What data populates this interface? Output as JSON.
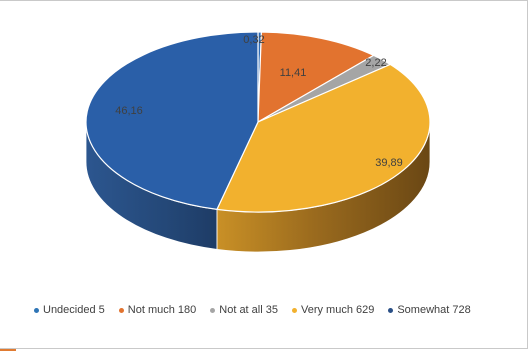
{
  "colors": {
    "accent_bar": "#E07B32",
    "blue": "#2E6BB5",
    "orange": "#E2732F",
    "gray": "#A5A5A5",
    "gold": "#F2B12E",
    "navy": "#2A4F86"
  },
  "chart_data": {
    "type": "pie",
    "style": "3d",
    "legend_position": "bottom",
    "slices": [
      {
        "label": "Undecided",
        "count": 5,
        "percent": 0.32,
        "percent_label": "0,32",
        "color": "#2E6BB5"
      },
      {
        "label": "Not much",
        "count": 180,
        "percent": 11.41,
        "percent_label": "11,41",
        "color": "#E2732F"
      },
      {
        "label": "Not at all",
        "count": 35,
        "percent": 2.22,
        "percent_label": "2,22",
        "color": "#A5A5A5"
      },
      {
        "label": "Very much",
        "count": 629,
        "percent": 39.89,
        "percent_label": "39,89",
        "color": "#F2B12E"
      },
      {
        "label": "Somewhat",
        "count": 728,
        "percent": 46.16,
        "percent_label": "46,16",
        "color": "#2A5FA8"
      }
    ],
    "legend": [
      {
        "text": "Undecided 5",
        "color": "#2E75B6"
      },
      {
        "text": "Not much 180",
        "color": "#E2732F"
      },
      {
        "text": "Not at all 35",
        "color": "#A5A5A5"
      },
      {
        "text": "Very much 629",
        "color": "#F2B12E"
      },
      {
        "text": "Somewhat 728",
        "color": "#2A4F86"
      }
    ]
  }
}
